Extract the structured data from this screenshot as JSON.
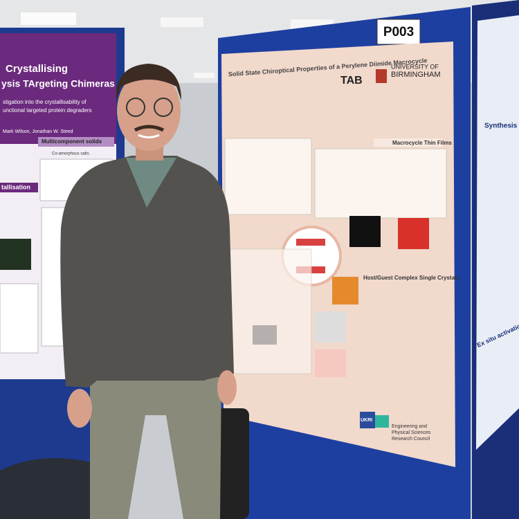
{
  "photo": {
    "board_label": "P003",
    "left_poster": {
      "title_line1": "Crystallising",
      "title_line2": "ysis TArgeting Chimeras",
      "subtitle_line1": "stigation into the crystallisability of",
      "subtitle_line2": "unctional targeted protein degraders",
      "authors": "Mark Wilson, Jonathan W. Steed",
      "section1": "Multicomponent solids",
      "section1_sub": "Co-amorphous salts",
      "section2": "tallisation"
    },
    "main_poster": {
      "title": "Solid State Chiroptical Properties of a Perylene Diimide Macrocycle",
      "logo_tab": "TAB",
      "university_line1": "UNIVERSITY OF",
      "university_line2": "BIRMINGHAM",
      "section_thin_films": "Macrocycle Thin Films",
      "section_host_guest": "Host/Guest Complex Single Crystals",
      "funder_logo": "UKRI",
      "funder_line1": "Engineering and",
      "funder_line2": "Physical Sciences",
      "funder_line3": "Research Council"
    },
    "right_poster": {
      "section1": "Synthesis",
      "section2": "Ex situ activation"
    }
  }
}
